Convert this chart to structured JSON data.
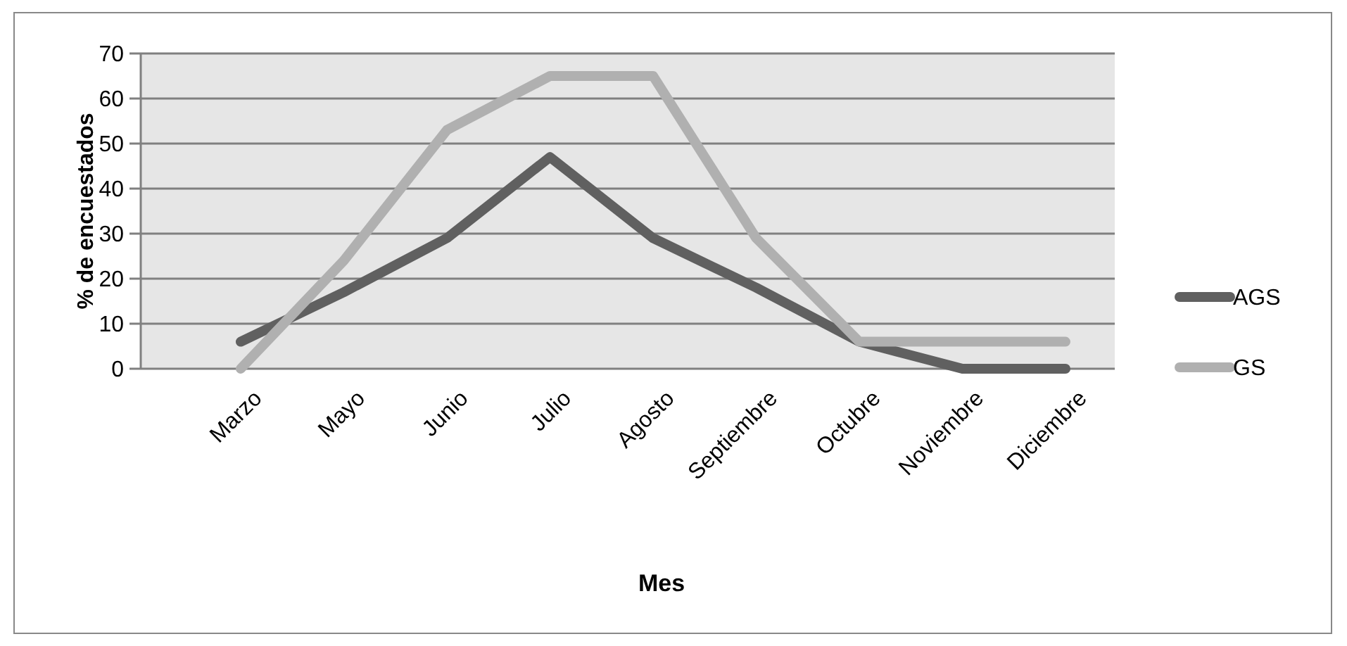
{
  "chart_data": {
    "type": "line",
    "xlabel": "Mes",
    "ylabel": "% de encuestados",
    "categories": [
      "Marzo",
      "Mayo",
      "Junio",
      "Julio",
      "Agosto",
      "Septiembre",
      "Octubre",
      "Noviembre",
      "Diciembre"
    ],
    "series": [
      {
        "name": "AGS",
        "color": "#606060",
        "values": [
          6,
          17,
          29,
          47,
          29,
          18,
          6,
          0,
          0
        ]
      },
      {
        "name": "GS",
        "color": "#b0b0b0",
        "values": [
          0,
          24,
          53,
          65,
          65,
          29,
          6,
          6,
          6
        ]
      }
    ],
    "ylim": [
      0,
      70
    ],
    "yticks": [
      0,
      10,
      20,
      30,
      40,
      50,
      60,
      70
    ],
    "grid": "y",
    "legend": "right",
    "marker": "none",
    "line_style": "solid"
  }
}
